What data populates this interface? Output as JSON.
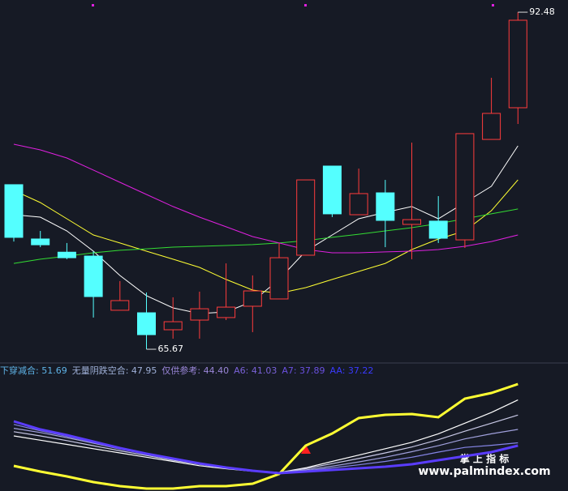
{
  "chart_data": [
    {
      "type": "candlestick",
      "open": [
        78.76,
        74.44,
        73.39,
        73.08,
        68.77,
        68.57,
        67.22,
        67.99,
        68.19,
        69.09,
        69.67,
        73.15,
        80.24,
        76.37,
        78.11,
        75.6,
        75.86,
        74.37,
        82.36,
        84.88
      ],
      "high": [
        78.76,
        75.08,
        74.12,
        73.47,
        71.09,
        70.18,
        69.8,
        70.25,
        72.5,
        71.54,
        74.12,
        79.14,
        80.24,
        80.04,
        79.14,
        82.11,
        77.85,
        82.82,
        87.26,
        92.48
      ],
      "low": [
        74.24,
        73.79,
        72.83,
        68.19,
        68.77,
        65.67,
        66.51,
        66.51,
        67.99,
        67.03,
        69.67,
        73.15,
        76.18,
        76.37,
        73.79,
        72.83,
        74.12,
        73.73,
        82.36,
        83.59
      ],
      "close": [
        74.57,
        73.98,
        72.95,
        69.86,
        69.54,
        66.83,
        67.86,
        68.89,
        69.02,
        70.31,
        72.95,
        79.14,
        76.44,
        78.05,
        75.92,
        75.98,
        74.5,
        82.82,
        84.43,
        91.84
      ],
      "up_color": "#ff3c3c",
      "down_color": "#54ffff",
      "ylim": [
        64.77,
        93.45
      ],
      "series": [
        {
          "color": "#ffffff",
          "values": [
            76.37,
            76.18,
            75.08,
            73.47,
            71.54,
            69.93,
            68.96,
            68.51,
            68.64,
            69.47,
            71.22,
            73.47,
            74.76,
            76.05,
            76.56,
            77.02,
            76.05,
            77.34,
            78.63,
            81.85
          ]
        },
        {
          "color": "#ffff33",
          "values": [
            78.3,
            77.34,
            76.05,
            74.76,
            74.12,
            73.47,
            72.83,
            72.18,
            71.22,
            70.38,
            70.12,
            70.57,
            71.22,
            71.86,
            72.5,
            73.6,
            74.44,
            75.08,
            76.69,
            79.14
          ]
        },
        {
          "color": "#33dd33",
          "values": [
            72.5,
            72.83,
            73.08,
            73.34,
            73.54,
            73.66,
            73.79,
            73.86,
            73.92,
            73.99,
            74.12,
            74.31,
            74.57,
            74.82,
            75.08,
            75.34,
            75.66,
            76.05,
            76.44,
            76.83
          ]
        },
        {
          "color": "#e020e0",
          "values": [
            81.98,
            81.53,
            80.88,
            79.92,
            78.95,
            77.98,
            77.02,
            76.18,
            75.41,
            74.63,
            74.12,
            73.6,
            73.34,
            73.34,
            73.41,
            73.47,
            73.6,
            73.86,
            74.24,
            74.76
          ]
        }
      ]
    },
    {
      "type": "line",
      "ylim": [
        26.56,
        53.4
      ],
      "series": [
        {
          "name": "下穿减合: 51.69",
          "color": "#ffff33",
          "label_color": "#5fb4e8",
          "width": 3,
          "values": [
            32.46,
            31.13,
            29.98,
            28.65,
            27.7,
            27.13,
            27.13,
            27.7,
            27.7,
            28.27,
            30.56,
            37.22,
            40.08,
            43.69,
            44.45,
            44.64,
            43.88,
            48.26,
            49.6,
            51.69
          ]
        },
        {
          "name": "无量阴跌空合: 47.95",
          "color": "#ffffff",
          "label_color": "#9fb0d8",
          "width": 1.2,
          "values": [
            39.5,
            38.5,
            37.5,
            36.5,
            35.5,
            34.5,
            33.5,
            32.5,
            31.8,
            31.2,
            30.9,
            32.0,
            33.5,
            35.0,
            36.5,
            38.0,
            40.0,
            42.5,
            45.0,
            47.95
          ]
        },
        {
          "name": "仅供参考: 44.40",
          "color": "#c8c8e6",
          "label_color": "#9a86d8",
          "width": 1.2,
          "values": [
            40.5,
            39.5,
            38.4,
            37.2,
            36.0,
            34.9,
            33.8,
            32.8,
            32.0,
            31.3,
            30.9,
            31.8,
            33.0,
            34.2,
            35.5,
            36.9,
            38.6,
            40.6,
            42.5,
            44.4
          ]
        },
        {
          "name": "A6: 41.03",
          "color": "#a0a0dc",
          "label_color": "#7a62d8",
          "width": 1.2,
          "values": [
            41.3,
            40.3,
            39.1,
            37.8,
            36.4,
            35.2,
            34.0,
            33.0,
            32.1,
            31.4,
            30.9,
            31.5,
            32.4,
            33.4,
            34.5,
            35.8,
            37.2,
            38.8,
            40.0,
            41.03
          ]
        },
        {
          "name": "A7: 37.89",
          "color": "#8484e4",
          "label_color": "#6a50e0",
          "width": 1.2,
          "values": [
            42.2,
            40.7,
            39.4,
            38.0,
            36.6,
            35.3,
            34.1,
            33.0,
            32.1,
            31.4,
            30.8,
            31.3,
            32.0,
            32.7,
            33.5,
            34.5,
            35.7,
            36.8,
            37.3,
            37.89
          ]
        },
        {
          "name": "AA: 37.22",
          "color": "#5a3cff",
          "label_color": "#3a3aff",
          "width": 3,
          "values": [
            42.93,
            41.03,
            39.69,
            38.17,
            36.65,
            35.32,
            34.17,
            33.03,
            32.08,
            31.32,
            30.75,
            31.13,
            31.51,
            31.89,
            32.27,
            32.84,
            33.79,
            34.74,
            35.7,
            37.22
          ]
        }
      ]
    }
  ],
  "watermark": {
    "title": "掌 上 指 标",
    "url": "www.palmindex.com"
  }
}
